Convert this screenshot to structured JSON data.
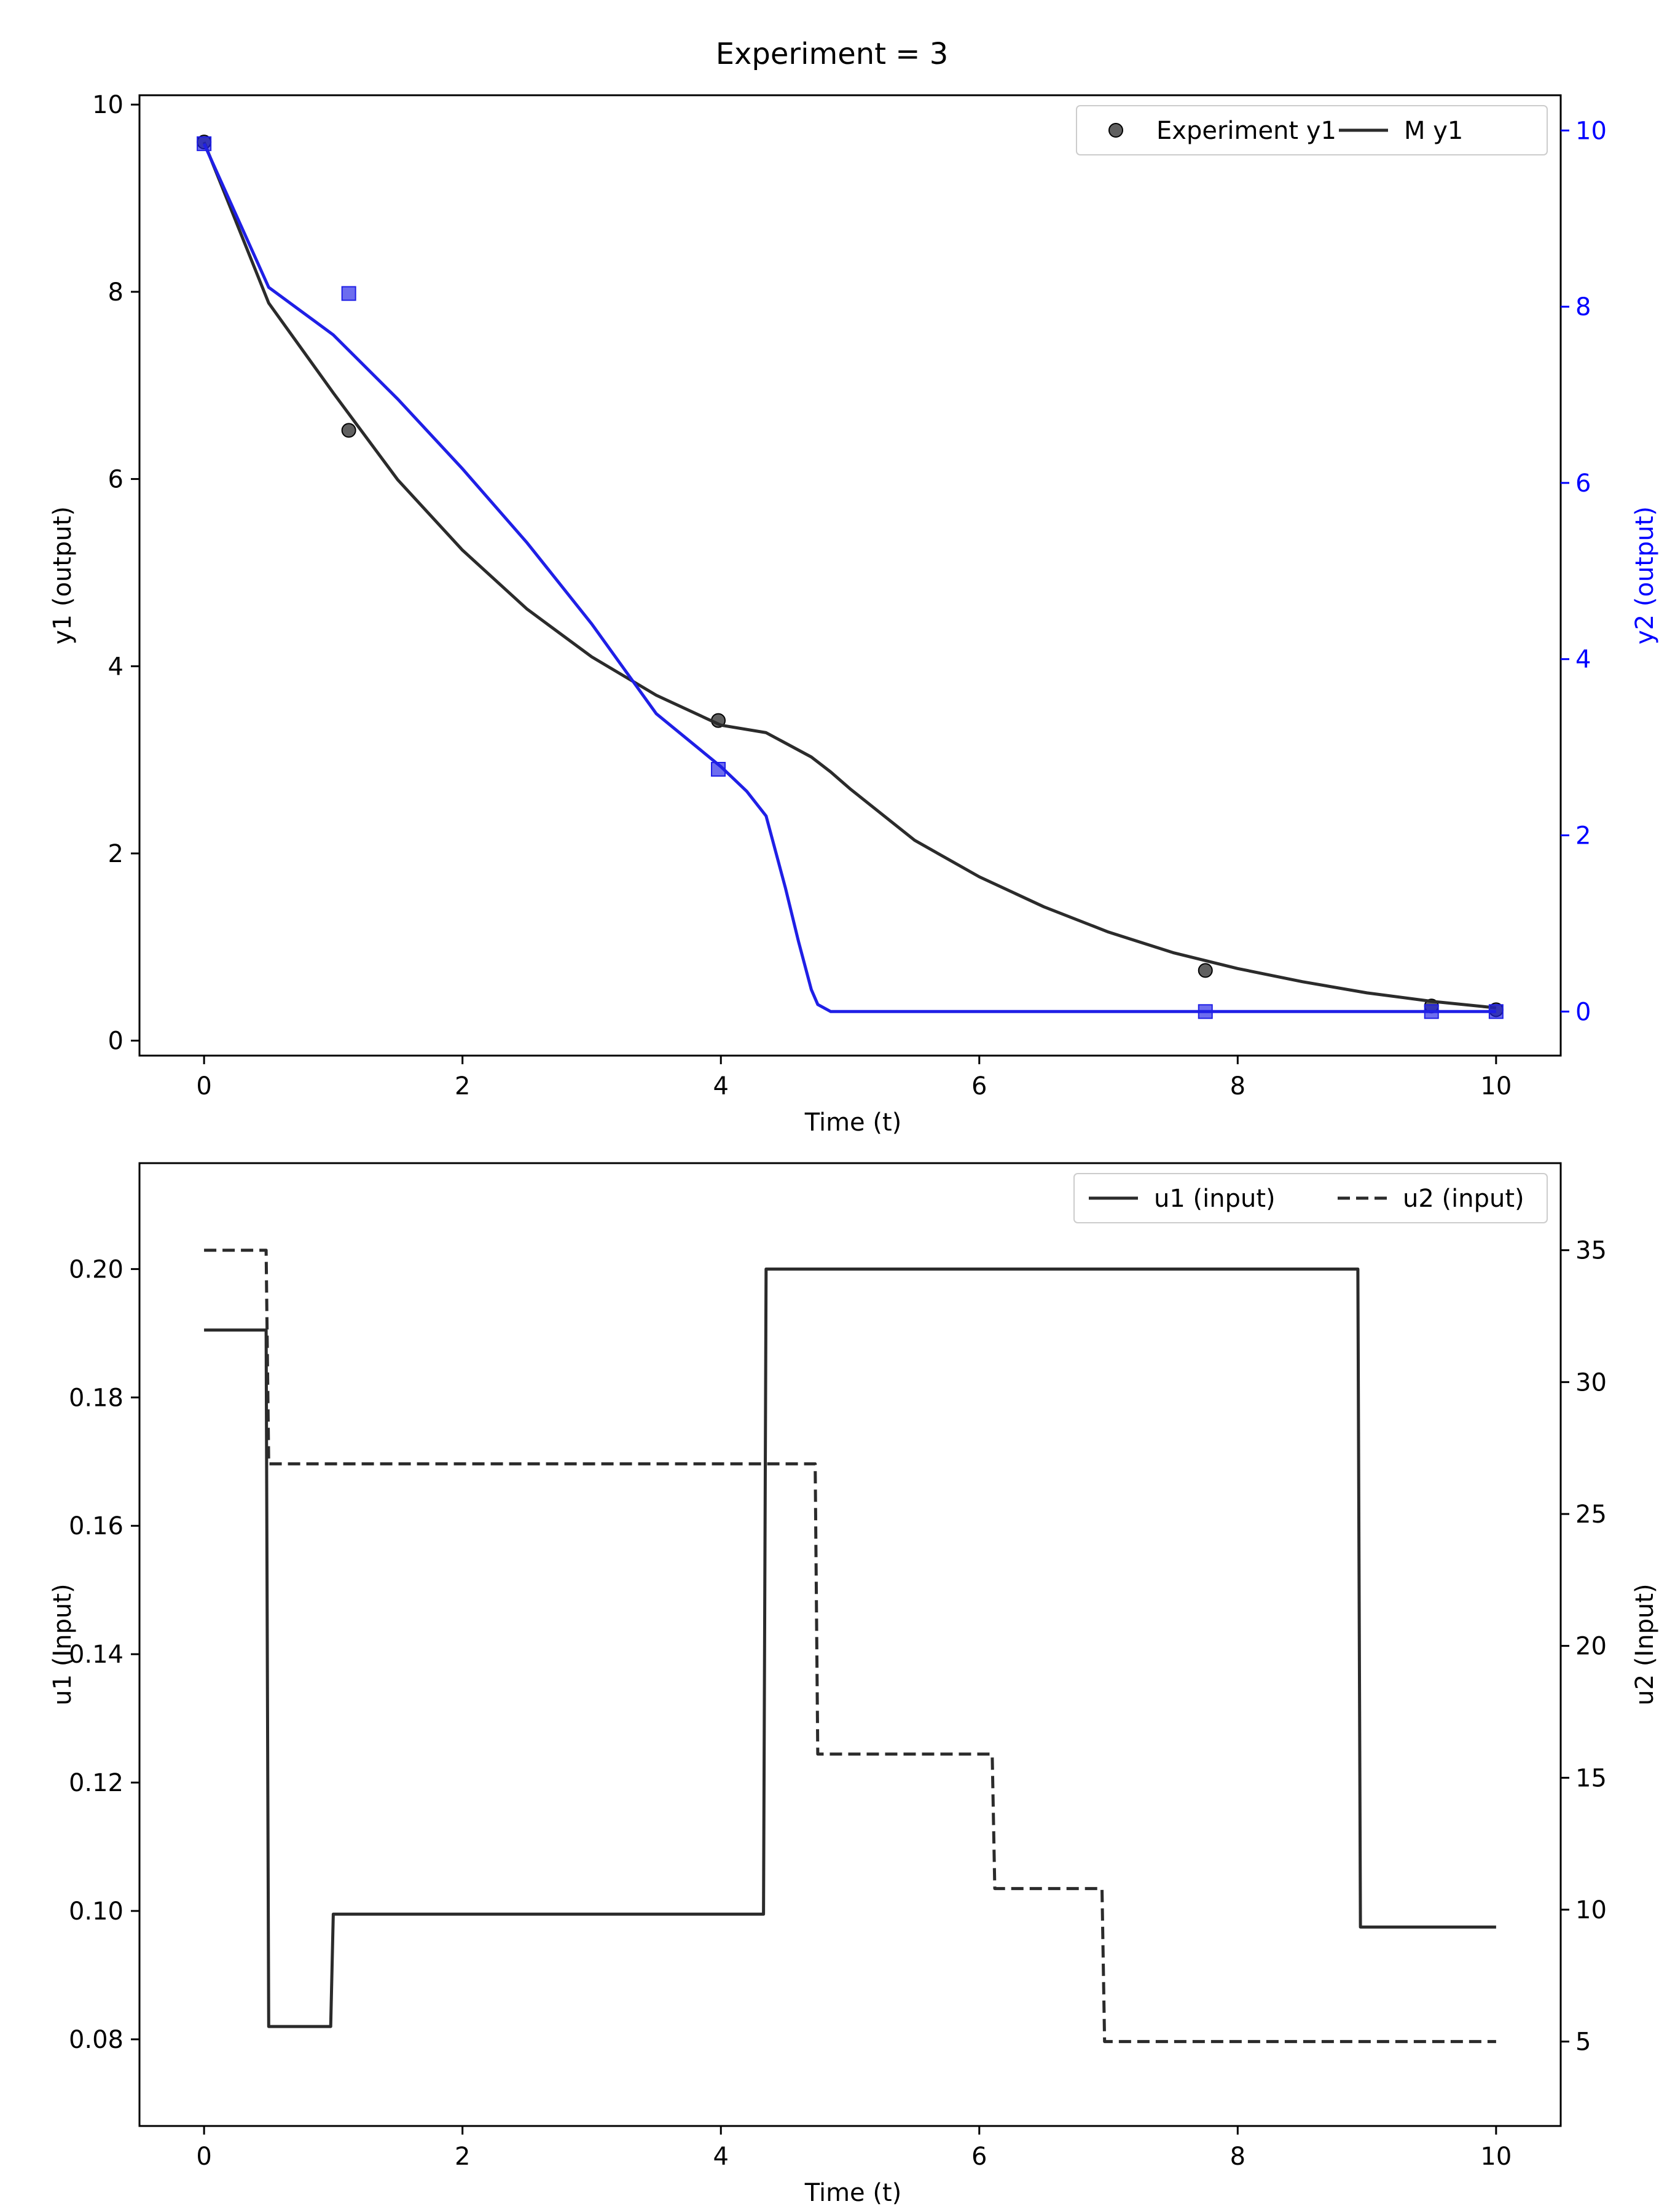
{
  "figure": {
    "title": "Experiment = 3"
  },
  "chart_data": [
    {
      "type": "line",
      "title": "Experiment = 3",
      "xlabel": "Time (t)",
      "ylabel": "y1 (output)",
      "y2label": "y2 (output)",
      "xlim": [
        -0.5,
        10.5
      ],
      "ylim": [
        -0.16,
        10.1
      ],
      "y2lim": [
        -0.5,
        10.4
      ],
      "xticks": [
        0,
        2,
        4,
        6,
        8,
        10
      ],
      "yticks": [
        0,
        2,
        4,
        6,
        8,
        10
      ],
      "y2ticks": [
        0,
        2,
        4,
        6,
        8,
        10
      ],
      "grid": false,
      "legend": {
        "position": "top-right",
        "entries": [
          "Experiment y1",
          "M y1"
        ]
      },
      "colors": {
        "y1": "#2b2b2b",
        "y2": "#1f1fe6",
        "y2_axis": "#0000ff"
      },
      "series": [
        {
          "name": "Experiment y1",
          "kind": "scatter",
          "marker": "circle",
          "axis": "left",
          "x": [
            0,
            1.12,
            3.98,
            7.75,
            9.5,
            10
          ],
          "y": [
            9.6,
            6.52,
            3.42,
            0.75,
            0.37,
            0.33
          ]
        },
        {
          "name": "M y1",
          "kind": "line",
          "axis": "left",
          "x": [
            0,
            0.5,
            1,
            1.5,
            2,
            2.5,
            3,
            3.5,
            4,
            4.35,
            4.7,
            4.85,
            5,
            5.5,
            6,
            6.5,
            7,
            7.5,
            8,
            8.5,
            9,
            9.5,
            10
          ],
          "y": [
            9.6,
            7.88,
            6.92,
            5.99,
            5.24,
            4.61,
            4.1,
            3.69,
            3.37,
            3.29,
            3.03,
            2.87,
            2.69,
            2.14,
            1.75,
            1.43,
            1.16,
            0.94,
            0.77,
            0.63,
            0.51,
            0.42,
            0.35
          ]
        },
        {
          "kind": "scatter",
          "marker": "square",
          "axis": "right",
          "x": [
            0,
            1.12,
            3.98,
            7.75,
            9.5,
            10
          ],
          "y": [
            9.85,
            8.15,
            2.75,
            0,
            0,
            0
          ]
        },
        {
          "kind": "line",
          "axis": "right",
          "x": [
            0,
            0.5,
            1,
            1.5,
            2,
            2.5,
            3,
            3.5,
            4,
            4.2,
            4.35,
            4.5,
            4.6,
            4.7,
            4.75,
            4.85,
            5,
            6,
            7,
            8,
            9,
            10
          ],
          "y": [
            9.85,
            8.22,
            7.68,
            6.95,
            6.16,
            5.32,
            4.4,
            3.38,
            2.78,
            2.5,
            2.22,
            1.4,
            0.8,
            0.25,
            0.08,
            0.0,
            0.0,
            0.0,
            0.0,
            0.0,
            0.0,
            0.0
          ]
        }
      ]
    },
    {
      "type": "line",
      "xlabel": "Time (t)",
      "ylabel": "u1 (Input)",
      "y2label": "u2 (Input)",
      "xlim": [
        -0.5,
        10.5
      ],
      "ylim": [
        0.0665,
        0.2165
      ],
      "y2lim": [
        1.8,
        38.3
      ],
      "xticks": [
        0,
        2,
        4,
        6,
        8,
        10
      ],
      "yticks": [
        0.08,
        0.1,
        0.12,
        0.14,
        0.16,
        0.18,
        0.2
      ],
      "ytick_labels": [
        "0.08",
        "0.10",
        "0.12",
        "0.14",
        "0.16",
        "0.18",
        "0.20"
      ],
      "y2ticks": [
        5,
        10,
        15,
        20,
        25,
        30,
        35
      ],
      "grid": false,
      "legend": {
        "position": "top-right",
        "entries": [
          "u1 (input)",
          "u2 (input)"
        ]
      },
      "colors": {
        "u1": "#2b2b2b",
        "u2": "#2b2b2b"
      },
      "series": [
        {
          "name": "u1 (input)",
          "kind": "line",
          "style": "solid",
          "axis": "left",
          "x": [
            0,
            0.48,
            0.5,
            0.98,
            1.0,
            4.33,
            4.35,
            8.93,
            8.95,
            10
          ],
          "y": [
            0.1905,
            0.1905,
            0.082,
            0.082,
            0.0995,
            0.0995,
            0.2,
            0.2,
            0.0975,
            0.0975
          ]
        },
        {
          "name": "u2 (input)",
          "kind": "line",
          "style": "dashed",
          "axis": "right",
          "x": [
            0,
            0.48,
            0.5,
            4.73,
            4.75,
            6.1,
            6.12,
            6.95,
            6.97,
            10
          ],
          "y": [
            35,
            35,
            26.9,
            26.9,
            15.9,
            15.9,
            10.8,
            10.8,
            5.0,
            5.0
          ]
        }
      ]
    }
  ]
}
